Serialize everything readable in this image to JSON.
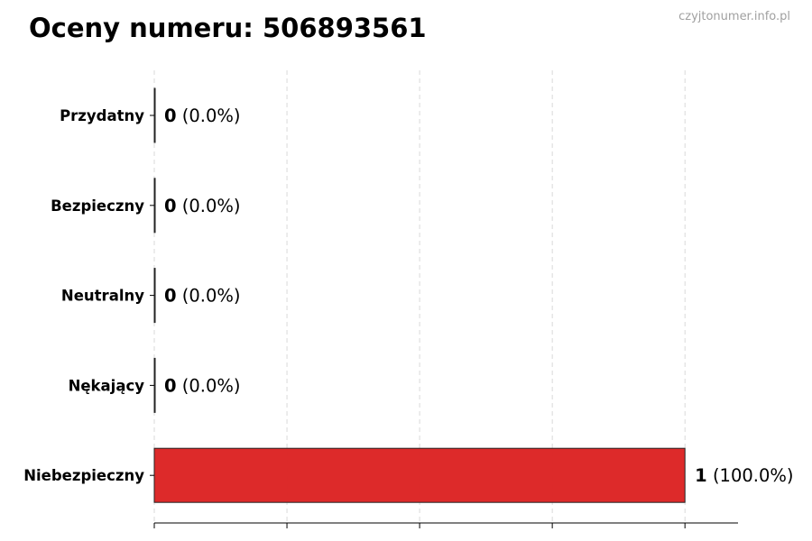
{
  "watermark": "czyjtonumer.info.pl",
  "chart_data": {
    "type": "bar",
    "orientation": "horizontal",
    "title": "Oceny numeru: 506893561",
    "xlabel": "",
    "ylabel": "",
    "categories": [
      "Przydatny",
      "Bezpieczny",
      "Neutralny",
      "Nękający",
      "Niebezpieczny"
    ],
    "values": [
      0,
      0,
      0,
      0,
      1
    ],
    "value_labels": [
      {
        "count": "0",
        "pct": "(0.0%)"
      },
      {
        "count": "0",
        "pct": "(0.0%)"
      },
      {
        "count": "0",
        "pct": "(0.0%)"
      },
      {
        "count": "0",
        "pct": "(0.0%)"
      },
      {
        "count": "1",
        "pct": "(100.0%)"
      }
    ],
    "xlim": [
      0,
      1.1
    ],
    "xticks": [
      0,
      0.25,
      0.5,
      0.75,
      1.0
    ],
    "grid": "x-dashed",
    "colors": {
      "bar": "#dc2626",
      "edge": "#222222",
      "grid": "#d0d0d0"
    }
  }
}
